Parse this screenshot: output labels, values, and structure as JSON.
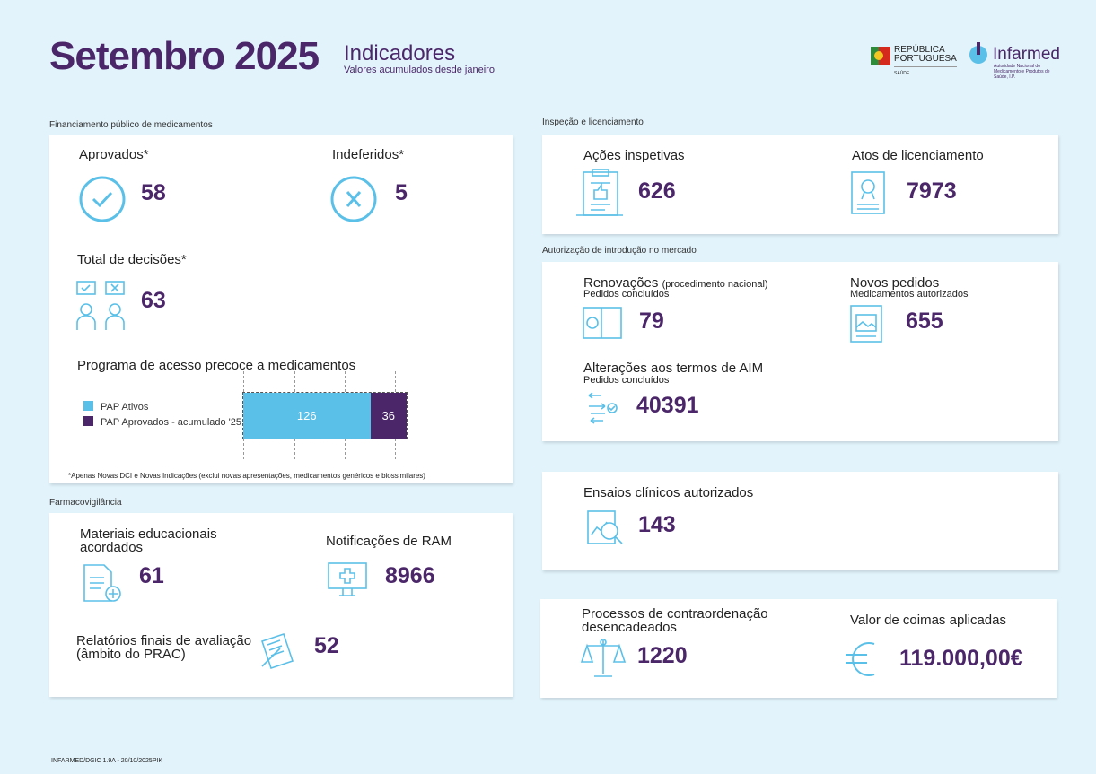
{
  "header": {
    "title": "Setembro 2025",
    "subtitle": "Indicadores",
    "note": "Valores acumulados desde janeiro",
    "republica_line1": "REPÚBLICA",
    "republica_line2": "PORTUGUESA",
    "republica_sub": "SAÚDE",
    "infarmed": "Infarmed",
    "infarmed_sub": "Autoridade Nacional do Medicamento e Produtos de Saúde, I.P."
  },
  "financiamento": {
    "label": "Financiamento público de medicamentos",
    "aprovados": {
      "label": "Aprovados*",
      "value": "58"
    },
    "indeferidos": {
      "label": "Indeferidos*",
      "value": "5"
    },
    "total": {
      "label": "Total de decisões*",
      "value": "63"
    },
    "pap": {
      "title": "Programa de acesso precoce a medicamentos",
      "series": [
        {
          "name": "PAP Ativos",
          "value": 126,
          "color": "#5bc0e8"
        },
        {
          "name": "PAP Aprovados - acumulado '25",
          "value": 36,
          "color": "#4b2769"
        }
      ]
    },
    "footnote": "*Apenas Novas DCI e Novas Indicações (exclui novas apresentações, medicamentos genéricos e biossimilares)"
  },
  "farmacovigilancia": {
    "label": "Farmacovigilância",
    "materiais": {
      "label": "Materiais educacionais acordados",
      "value": "61"
    },
    "notificacoes": {
      "label": "Notificações de RAM",
      "value": "8966"
    },
    "relatorios": {
      "label_line1": "Relatórios finais de avaliação",
      "label_line2": "(âmbito do PRAC)",
      "value": "52"
    }
  },
  "inspecao": {
    "label": "Inspeção e licenciamento",
    "acoes": {
      "label": "Ações inspetivas",
      "value": "626"
    },
    "atos": {
      "label": "Atos de licenciamento",
      "value": "7973"
    }
  },
  "aim": {
    "label": "Autorização de introdução no mercado",
    "renovacoes": {
      "label": "Renovações",
      "qualifier": "(procedimento nacional)",
      "sublabel": "Pedidos concluídos",
      "value": "79"
    },
    "novos": {
      "label": "Novos pedidos",
      "sublabel": "Medicamentos autorizados",
      "value": "655"
    },
    "alteracoes": {
      "label": "Alterações aos termos de AIM",
      "sublabel": "Pedidos concluídos",
      "value": "40391"
    }
  },
  "ensaios": {
    "label": "Ensaios clínicos autorizados",
    "value": "143"
  },
  "contraordenacao": {
    "processos": {
      "label_line1": "Processos de contraordenação",
      "label_line2": "desencadeados",
      "value": "1220"
    },
    "coimas": {
      "label": "Valor de coimas aplicadas",
      "value": "119.000,00€"
    }
  },
  "footer": "INFARMED/DGIC 1.9A - 20/10/2025PIK"
}
